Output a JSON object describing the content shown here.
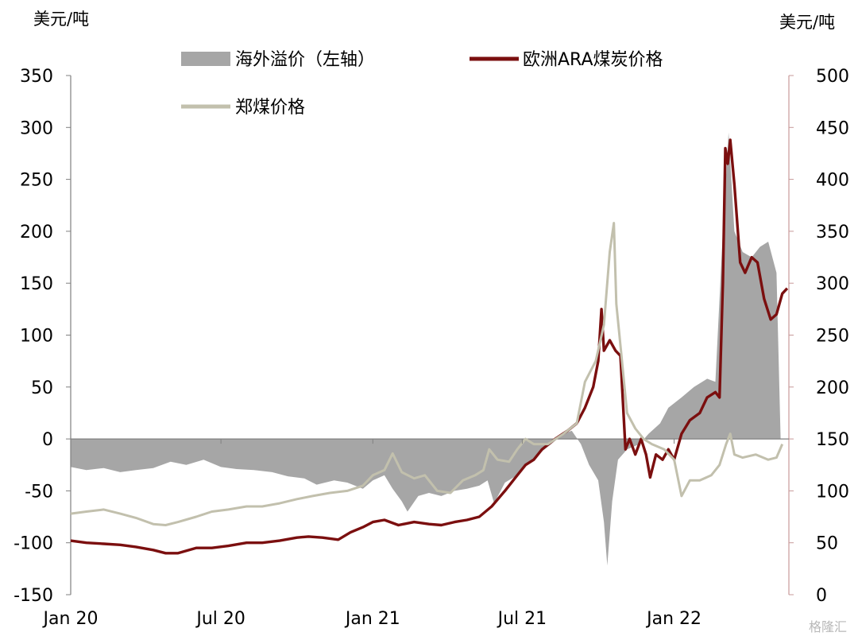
{
  "chart_data": {
    "type": "area",
    "left_axis": {
      "label": "美元/吨",
      "ylim": [
        -150,
        350
      ],
      "ticks": [
        350,
        300,
        250,
        200,
        150,
        100,
        50,
        0,
        -50,
        -100,
        -150
      ]
    },
    "right_axis": {
      "label": "美元/吨",
      "ylim": [
        0,
        500
      ],
      "ticks": [
        500,
        450,
        400,
        350,
        300,
        250,
        200,
        150,
        100,
        50,
        0
      ]
    },
    "x_axis": {
      "ticks": [
        "Jan 20",
        "Jul 20",
        "Jan 21",
        "Jul 21",
        "Jan 22"
      ],
      "tick_dates": [
        "2020-01-01",
        "2020-07-01",
        "2021-01-01",
        "2021-07-01",
        "2022-01-01"
      ],
      "range": [
        "2020-01-01",
        "2022-05-20"
      ]
    },
    "legend": {
      "placement": "top",
      "entries": [
        "海外溢价（左轴）",
        "欧洲ARA煤炭价格",
        "郑煤价格"
      ]
    },
    "watermark": "格隆汇",
    "series": [
      {
        "name": "海外溢价（左轴）",
        "kind": "area",
        "axis": "left",
        "color": "#a6a6a6",
        "points": [
          [
            "2020-01-01",
            -27
          ],
          [
            "2020-01-20",
            -30
          ],
          [
            "2020-02-10",
            -28
          ],
          [
            "2020-03-01",
            -32
          ],
          [
            "2020-03-20",
            -30
          ],
          [
            "2020-04-10",
            -28
          ],
          [
            "2020-05-01",
            -22
          ],
          [
            "2020-05-20",
            -25
          ],
          [
            "2020-06-10",
            -20
          ],
          [
            "2020-07-01",
            -27
          ],
          [
            "2020-07-20",
            -29
          ],
          [
            "2020-08-10",
            -30
          ],
          [
            "2020-09-01",
            -32
          ],
          [
            "2020-09-20",
            -36
          ],
          [
            "2020-10-10",
            -38
          ],
          [
            "2020-10-25",
            -44
          ],
          [
            "2020-11-15",
            -40
          ],
          [
            "2020-12-01",
            -42
          ],
          [
            "2020-12-20",
            -48
          ],
          [
            "2021-01-01",
            -40
          ],
          [
            "2021-01-15",
            -35
          ],
          [
            "2021-01-25",
            -48
          ],
          [
            "2021-02-05",
            -60
          ],
          [
            "2021-02-12",
            -70
          ],
          [
            "2021-02-25",
            -55
          ],
          [
            "2021-03-10",
            -52
          ],
          [
            "2021-03-25",
            -55
          ],
          [
            "2021-04-10",
            -50
          ],
          [
            "2021-04-25",
            -48
          ],
          [
            "2021-05-10",
            -45
          ],
          [
            "2021-05-20",
            -40
          ],
          [
            "2021-05-28",
            -62
          ],
          [
            "2021-06-10",
            -42
          ],
          [
            "2021-06-25",
            -35
          ],
          [
            "2021-07-05",
            -25
          ],
          [
            "2021-07-20",
            -15
          ],
          [
            "2021-08-05",
            -5
          ],
          [
            "2021-08-20",
            5
          ],
          [
            "2021-08-30",
            8
          ],
          [
            "2021-09-10",
            -5
          ],
          [
            "2021-09-20",
            -25
          ],
          [
            "2021-10-01",
            -40
          ],
          [
            "2021-10-08",
            -80
          ],
          [
            "2021-10-12",
            -122
          ],
          [
            "2021-10-18",
            -60
          ],
          [
            "2021-10-25",
            -20
          ],
          [
            "2021-11-05",
            -10
          ],
          [
            "2021-11-20",
            -5
          ],
          [
            "2021-12-01",
            5
          ],
          [
            "2021-12-15",
            15
          ],
          [
            "2021-12-25",
            30
          ],
          [
            "2022-01-10",
            40
          ],
          [
            "2022-01-25",
            50
          ],
          [
            "2022-02-10",
            58
          ],
          [
            "2022-02-20",
            55
          ],
          [
            "2022-03-01",
            200
          ],
          [
            "2022-03-08",
            295
          ],
          [
            "2022-03-15",
            200
          ],
          [
            "2022-03-25",
            180
          ],
          [
            "2022-04-05",
            175
          ],
          [
            "2022-04-15",
            185
          ],
          [
            "2022-04-25",
            190
          ],
          [
            "2022-05-05",
            160
          ],
          [
            "2022-05-10",
            0
          ]
        ]
      },
      {
        "name": "欧洲ARA煤炭价格",
        "kind": "line",
        "axis": "right",
        "color": "#7b0f0f",
        "points": [
          [
            "2020-01-01",
            52
          ],
          [
            "2020-01-20",
            50
          ],
          [
            "2020-02-10",
            49
          ],
          [
            "2020-03-01",
            48
          ],
          [
            "2020-03-20",
            46
          ],
          [
            "2020-04-10",
            43
          ],
          [
            "2020-04-25",
            40
          ],
          [
            "2020-05-10",
            40
          ],
          [
            "2020-06-01",
            45
          ],
          [
            "2020-06-20",
            45
          ],
          [
            "2020-07-10",
            47
          ],
          [
            "2020-08-01",
            50
          ],
          [
            "2020-08-20",
            50
          ],
          [
            "2020-09-10",
            52
          ],
          [
            "2020-10-01",
            55
          ],
          [
            "2020-10-15",
            56
          ],
          [
            "2020-11-01",
            55
          ],
          [
            "2020-11-20",
            53
          ],
          [
            "2020-12-05",
            60
          ],
          [
            "2020-12-20",
            65
          ],
          [
            "2021-01-01",
            70
          ],
          [
            "2021-01-15",
            72
          ],
          [
            "2021-02-01",
            67
          ],
          [
            "2021-02-20",
            70
          ],
          [
            "2021-03-10",
            68
          ],
          [
            "2021-03-25",
            67
          ],
          [
            "2021-04-10",
            70
          ],
          [
            "2021-04-25",
            72
          ],
          [
            "2021-05-10",
            75
          ],
          [
            "2021-05-25",
            85
          ],
          [
            "2021-06-10",
            100
          ],
          [
            "2021-06-25",
            115
          ],
          [
            "2021-07-05",
            125
          ],
          [
            "2021-07-15",
            130
          ],
          [
            "2021-07-25",
            140
          ],
          [
            "2021-08-10",
            150
          ],
          [
            "2021-08-25",
            158
          ],
          [
            "2021-09-05",
            165
          ],
          [
            "2021-09-15",
            180
          ],
          [
            "2021-09-25",
            200
          ],
          [
            "2021-10-01",
            225
          ],
          [
            "2021-10-05",
            275
          ],
          [
            "2021-10-08",
            235
          ],
          [
            "2021-10-15",
            245
          ],
          [
            "2021-10-22",
            235
          ],
          [
            "2021-10-28",
            230
          ],
          [
            "2021-11-03",
            140
          ],
          [
            "2021-11-08",
            150
          ],
          [
            "2021-11-15",
            135
          ],
          [
            "2021-11-22",
            150
          ],
          [
            "2021-11-28",
            135
          ],
          [
            "2021-12-03",
            113
          ],
          [
            "2021-12-10",
            135
          ],
          [
            "2021-12-18",
            130
          ],
          [
            "2021-12-25",
            140
          ],
          [
            "2022-01-01",
            130
          ],
          [
            "2022-01-10",
            155
          ],
          [
            "2022-01-20",
            168
          ],
          [
            "2022-02-01",
            175
          ],
          [
            "2022-02-10",
            190
          ],
          [
            "2022-02-20",
            195
          ],
          [
            "2022-02-25",
            190
          ],
          [
            "2022-03-01",
            300
          ],
          [
            "2022-03-04",
            430
          ],
          [
            "2022-03-07",
            415
          ],
          [
            "2022-03-10",
            438
          ],
          [
            "2022-03-15",
            395
          ],
          [
            "2022-03-22",
            320
          ],
          [
            "2022-03-28",
            310
          ],
          [
            "2022-04-05",
            325
          ],
          [
            "2022-04-12",
            320
          ],
          [
            "2022-04-20",
            285
          ],
          [
            "2022-04-28",
            265
          ],
          [
            "2022-05-05",
            270
          ],
          [
            "2022-05-12",
            290
          ],
          [
            "2022-05-18",
            295
          ]
        ]
      },
      {
        "name": "郑煤价格",
        "kind": "line",
        "axis": "right",
        "color": "#c2c0ad",
        "points": [
          [
            "2020-01-01",
            78
          ],
          [
            "2020-01-20",
            80
          ],
          [
            "2020-02-10",
            82
          ],
          [
            "2020-03-01",
            78
          ],
          [
            "2020-03-20",
            74
          ],
          [
            "2020-04-10",
            68
          ],
          [
            "2020-04-25",
            67
          ],
          [
            "2020-05-10",
            70
          ],
          [
            "2020-06-01",
            75
          ],
          [
            "2020-06-20",
            80
          ],
          [
            "2020-07-10",
            82
          ],
          [
            "2020-08-01",
            85
          ],
          [
            "2020-08-20",
            85
          ],
          [
            "2020-09-10",
            88
          ],
          [
            "2020-10-01",
            92
          ],
          [
            "2020-10-20",
            95
          ],
          [
            "2020-11-10",
            98
          ],
          [
            "2020-12-01",
            100
          ],
          [
            "2020-12-20",
            105
          ],
          [
            "2021-01-01",
            115
          ],
          [
            "2021-01-15",
            120
          ],
          [
            "2021-01-25",
            136
          ],
          [
            "2021-02-05",
            118
          ],
          [
            "2021-02-20",
            112
          ],
          [
            "2021-03-05",
            115
          ],
          [
            "2021-03-20",
            100
          ],
          [
            "2021-04-05",
            98
          ],
          [
            "2021-04-20",
            110
          ],
          [
            "2021-05-05",
            115
          ],
          [
            "2021-05-15",
            120
          ],
          [
            "2021-05-22",
            140
          ],
          [
            "2021-06-01",
            130
          ],
          [
            "2021-06-15",
            128
          ],
          [
            "2021-06-25",
            140
          ],
          [
            "2021-07-05",
            150
          ],
          [
            "2021-07-15",
            145
          ],
          [
            "2021-08-01",
            145
          ],
          [
            "2021-08-20",
            155
          ],
          [
            "2021-09-05",
            165
          ],
          [
            "2021-09-15",
            205
          ],
          [
            "2021-09-28",
            225
          ],
          [
            "2021-10-08",
            260
          ],
          [
            "2021-10-15",
            330
          ],
          [
            "2021-10-20",
            358
          ],
          [
            "2021-10-23",
            280
          ],
          [
            "2021-10-28",
            240
          ],
          [
            "2021-11-05",
            175
          ],
          [
            "2021-11-15",
            160
          ],
          [
            "2021-11-25",
            150
          ],
          [
            "2021-12-05",
            145
          ],
          [
            "2021-12-20",
            140
          ],
          [
            "2022-01-01",
            130
          ],
          [
            "2022-01-10",
            95
          ],
          [
            "2022-01-20",
            110
          ],
          [
            "2022-02-01",
            110
          ],
          [
            "2022-02-15",
            115
          ],
          [
            "2022-02-25",
            125
          ],
          [
            "2022-03-05",
            145
          ],
          [
            "2022-03-10",
            155
          ],
          [
            "2022-03-15",
            135
          ],
          [
            "2022-03-25",
            132
          ],
          [
            "2022-04-10",
            135
          ],
          [
            "2022-04-25",
            130
          ],
          [
            "2022-05-05",
            132
          ],
          [
            "2022-05-12",
            145
          ]
        ]
      }
    ]
  }
}
